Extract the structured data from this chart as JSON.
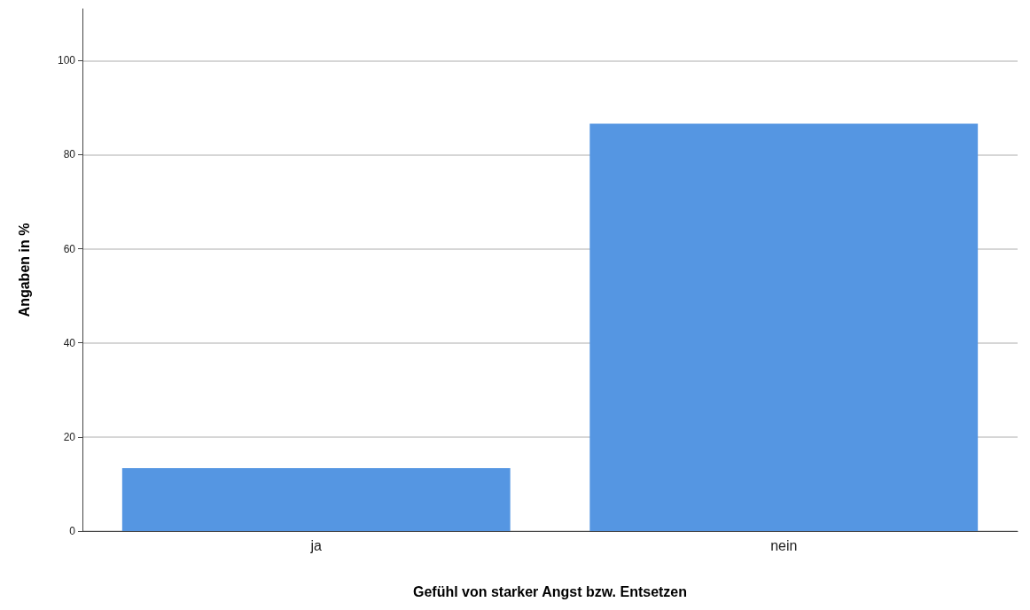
{
  "chart_data": {
    "type": "bar",
    "xlabel": "Gefühl von starker Angst bzw. Entsetzen",
    "ylabel": "Angaben in %",
    "categories": [
      "ja",
      "nein"
    ],
    "values": [
      13.4,
      86.6
    ],
    "color": "#5596e2",
    "ylim": [
      0,
      111
    ],
    "yticks": [
      0,
      20,
      40,
      60,
      80,
      100
    ],
    "grid": "y"
  }
}
